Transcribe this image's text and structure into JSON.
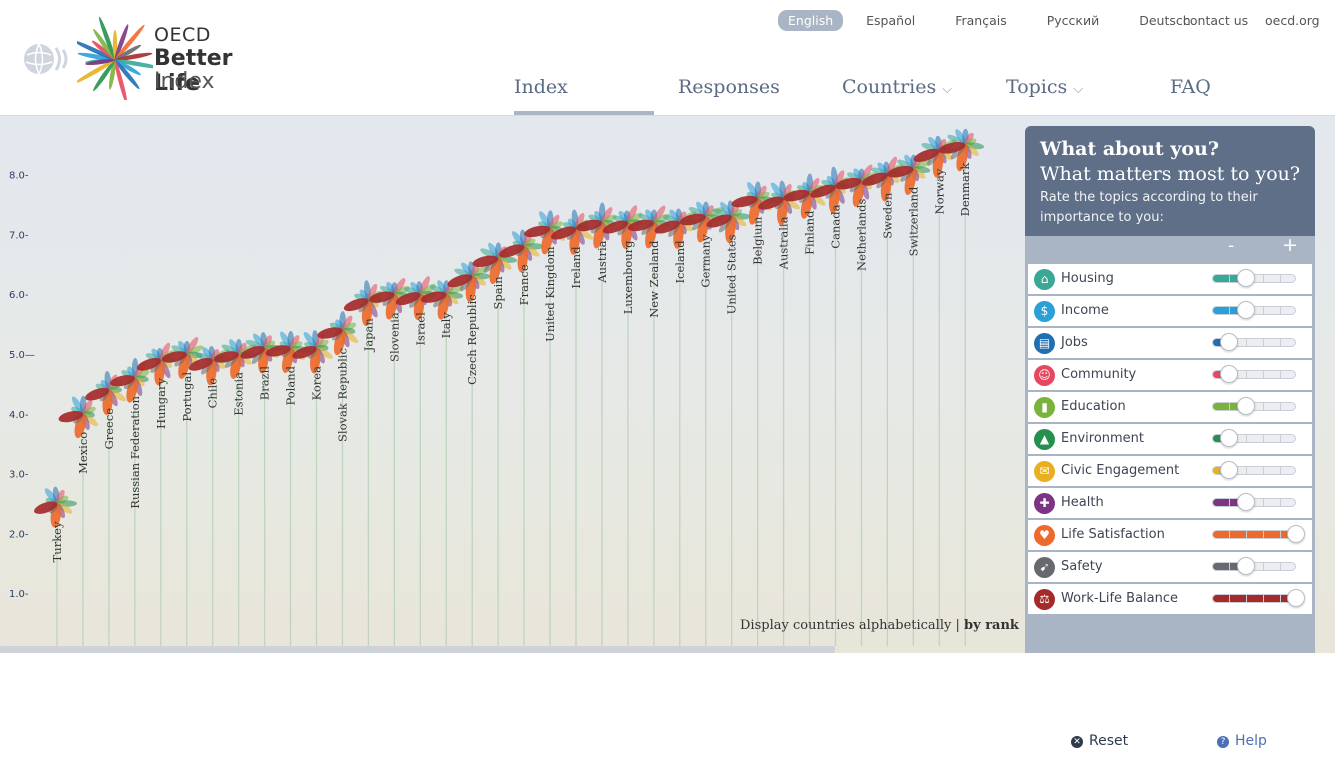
{
  "logo": {
    "line1": "OECD",
    "line2": "Better Life",
    "line3": "Index"
  },
  "languages": [
    {
      "label": "English",
      "active": true
    },
    {
      "label": "Español"
    },
    {
      "label": "Français"
    },
    {
      "label": "Русский"
    },
    {
      "label": "Deutsch"
    }
  ],
  "top_links": {
    "contact": "contact us",
    "oecd": "oecd.org"
  },
  "nav": [
    {
      "label": "Index",
      "active": true
    },
    {
      "label": "Responses"
    },
    {
      "label": "Countries",
      "dropdown": true
    },
    {
      "label": "Topics",
      "dropdown": true
    },
    {
      "label": "FAQ"
    }
  ],
  "display_toggle": {
    "prefix": "Display countries alphabetically",
    "sep": "|",
    "active": "by rank"
  },
  "panel": {
    "title1": "What about you?",
    "title2": "What matters most to you?",
    "description": "Rate the topics according to their importance to you:",
    "minus": "-",
    "plus": "+",
    "topics": [
      {
        "label": "Housing",
        "color": "#3aa896",
        "level": 0.4,
        "icon": "house-icon"
      },
      {
        "label": "Income",
        "color": "#2a9fd8",
        "level": 0.4,
        "icon": "money-icon"
      },
      {
        "label": "Jobs",
        "color": "#1f6fb2",
        "level": 0.2,
        "icon": "briefcase-icon"
      },
      {
        "label": "Community",
        "color": "#e8485f",
        "level": 0.2,
        "icon": "people-icon"
      },
      {
        "label": "Education",
        "color": "#7ab33c",
        "level": 0.4,
        "icon": "book-icon"
      },
      {
        "label": "Environment",
        "color": "#26914f",
        "level": 0.2,
        "icon": "tree-icon"
      },
      {
        "label": "Civic Engagement",
        "color": "#e8b020",
        "level": 0.2,
        "icon": "envelope-icon"
      },
      {
        "label": "Health",
        "color": "#7c3585",
        "level": 0.4,
        "icon": "cross-icon"
      },
      {
        "label": "Life Satisfaction",
        "color": "#ee6a2c",
        "level": 1.0,
        "icon": "heart-icon"
      },
      {
        "label": "Safety",
        "color": "#666a6e",
        "level": 0.4,
        "icon": "runner-icon"
      },
      {
        "label": "Work-Life Balance",
        "color": "#a52a2a",
        "level": 1.0,
        "icon": "scale-icon"
      }
    ],
    "reset_label": "Reset",
    "help_label": "Help"
  },
  "chart_data": {
    "type": "scatter",
    "ylim": [
      0,
      9
    ],
    "y_ticks": [
      "1.0-",
      "2.0-",
      "3.0-",
      "4.0-",
      "5.0—",
      "6.0-",
      "7.0-",
      "8.0-"
    ],
    "countries": [
      {
        "name": "Turkey",
        "score": 2.5
      },
      {
        "name": "Mexico",
        "score": 4.0
      },
      {
        "name": "Greece",
        "score": 4.4
      },
      {
        "name": "Russian Federation",
        "score": 4.6
      },
      {
        "name": "Hungary",
        "score": 4.9
      },
      {
        "name": "Portugal",
        "score": 5.0
      },
      {
        "name": "Chile",
        "score": 4.9
      },
      {
        "name": "Estonia",
        "score": 5.0
      },
      {
        "name": "Brazil",
        "score": 5.1
      },
      {
        "name": "Poland",
        "score": 5.1
      },
      {
        "name": "Korea",
        "score": 5.1
      },
      {
        "name": "Slovak Republic",
        "score": 5.4
      },
      {
        "name": "Japan",
        "score": 5.9
      },
      {
        "name": "Slovenia",
        "score": 6.0
      },
      {
        "name": "Israel",
        "score": 6.0
      },
      {
        "name": "Italy",
        "score": 6.0
      },
      {
        "name": "Czech Republic",
        "score": 6.3
      },
      {
        "name": "Spain",
        "score": 6.6
      },
      {
        "name": "France",
        "score": 6.8
      },
      {
        "name": "United Kingdom",
        "score": 7.1
      },
      {
        "name": "Ireland",
        "score": 7.1
      },
      {
        "name": "Austria",
        "score": 7.2
      },
      {
        "name": "Luxembourg",
        "score": 7.2
      },
      {
        "name": "New Zealand",
        "score": 7.2
      },
      {
        "name": "Iceland",
        "score": 7.2
      },
      {
        "name": "Germany",
        "score": 7.3
      },
      {
        "name": "United States",
        "score": 7.3
      },
      {
        "name": "Belgium",
        "score": 7.6
      },
      {
        "name": "Australia",
        "score": 7.6
      },
      {
        "name": "Finland",
        "score": 7.7
      },
      {
        "name": "Canada",
        "score": 7.8
      },
      {
        "name": "Netherlands",
        "score": 7.9
      },
      {
        "name": "Sweden",
        "score": 8.0
      },
      {
        "name": "Switzerland",
        "score": 8.1
      },
      {
        "name": "Norway",
        "score": 8.4
      },
      {
        "name": "Denmark",
        "score": 8.5
      }
    ],
    "petal_colors": [
      "#3aa896",
      "#2a9fd8",
      "#1f6fb2",
      "#e8485f",
      "#7ab33c",
      "#26914f",
      "#e8b020",
      "#7c3585",
      "#ee6a2c",
      "#666a6e",
      "#a52a2a"
    ]
  }
}
